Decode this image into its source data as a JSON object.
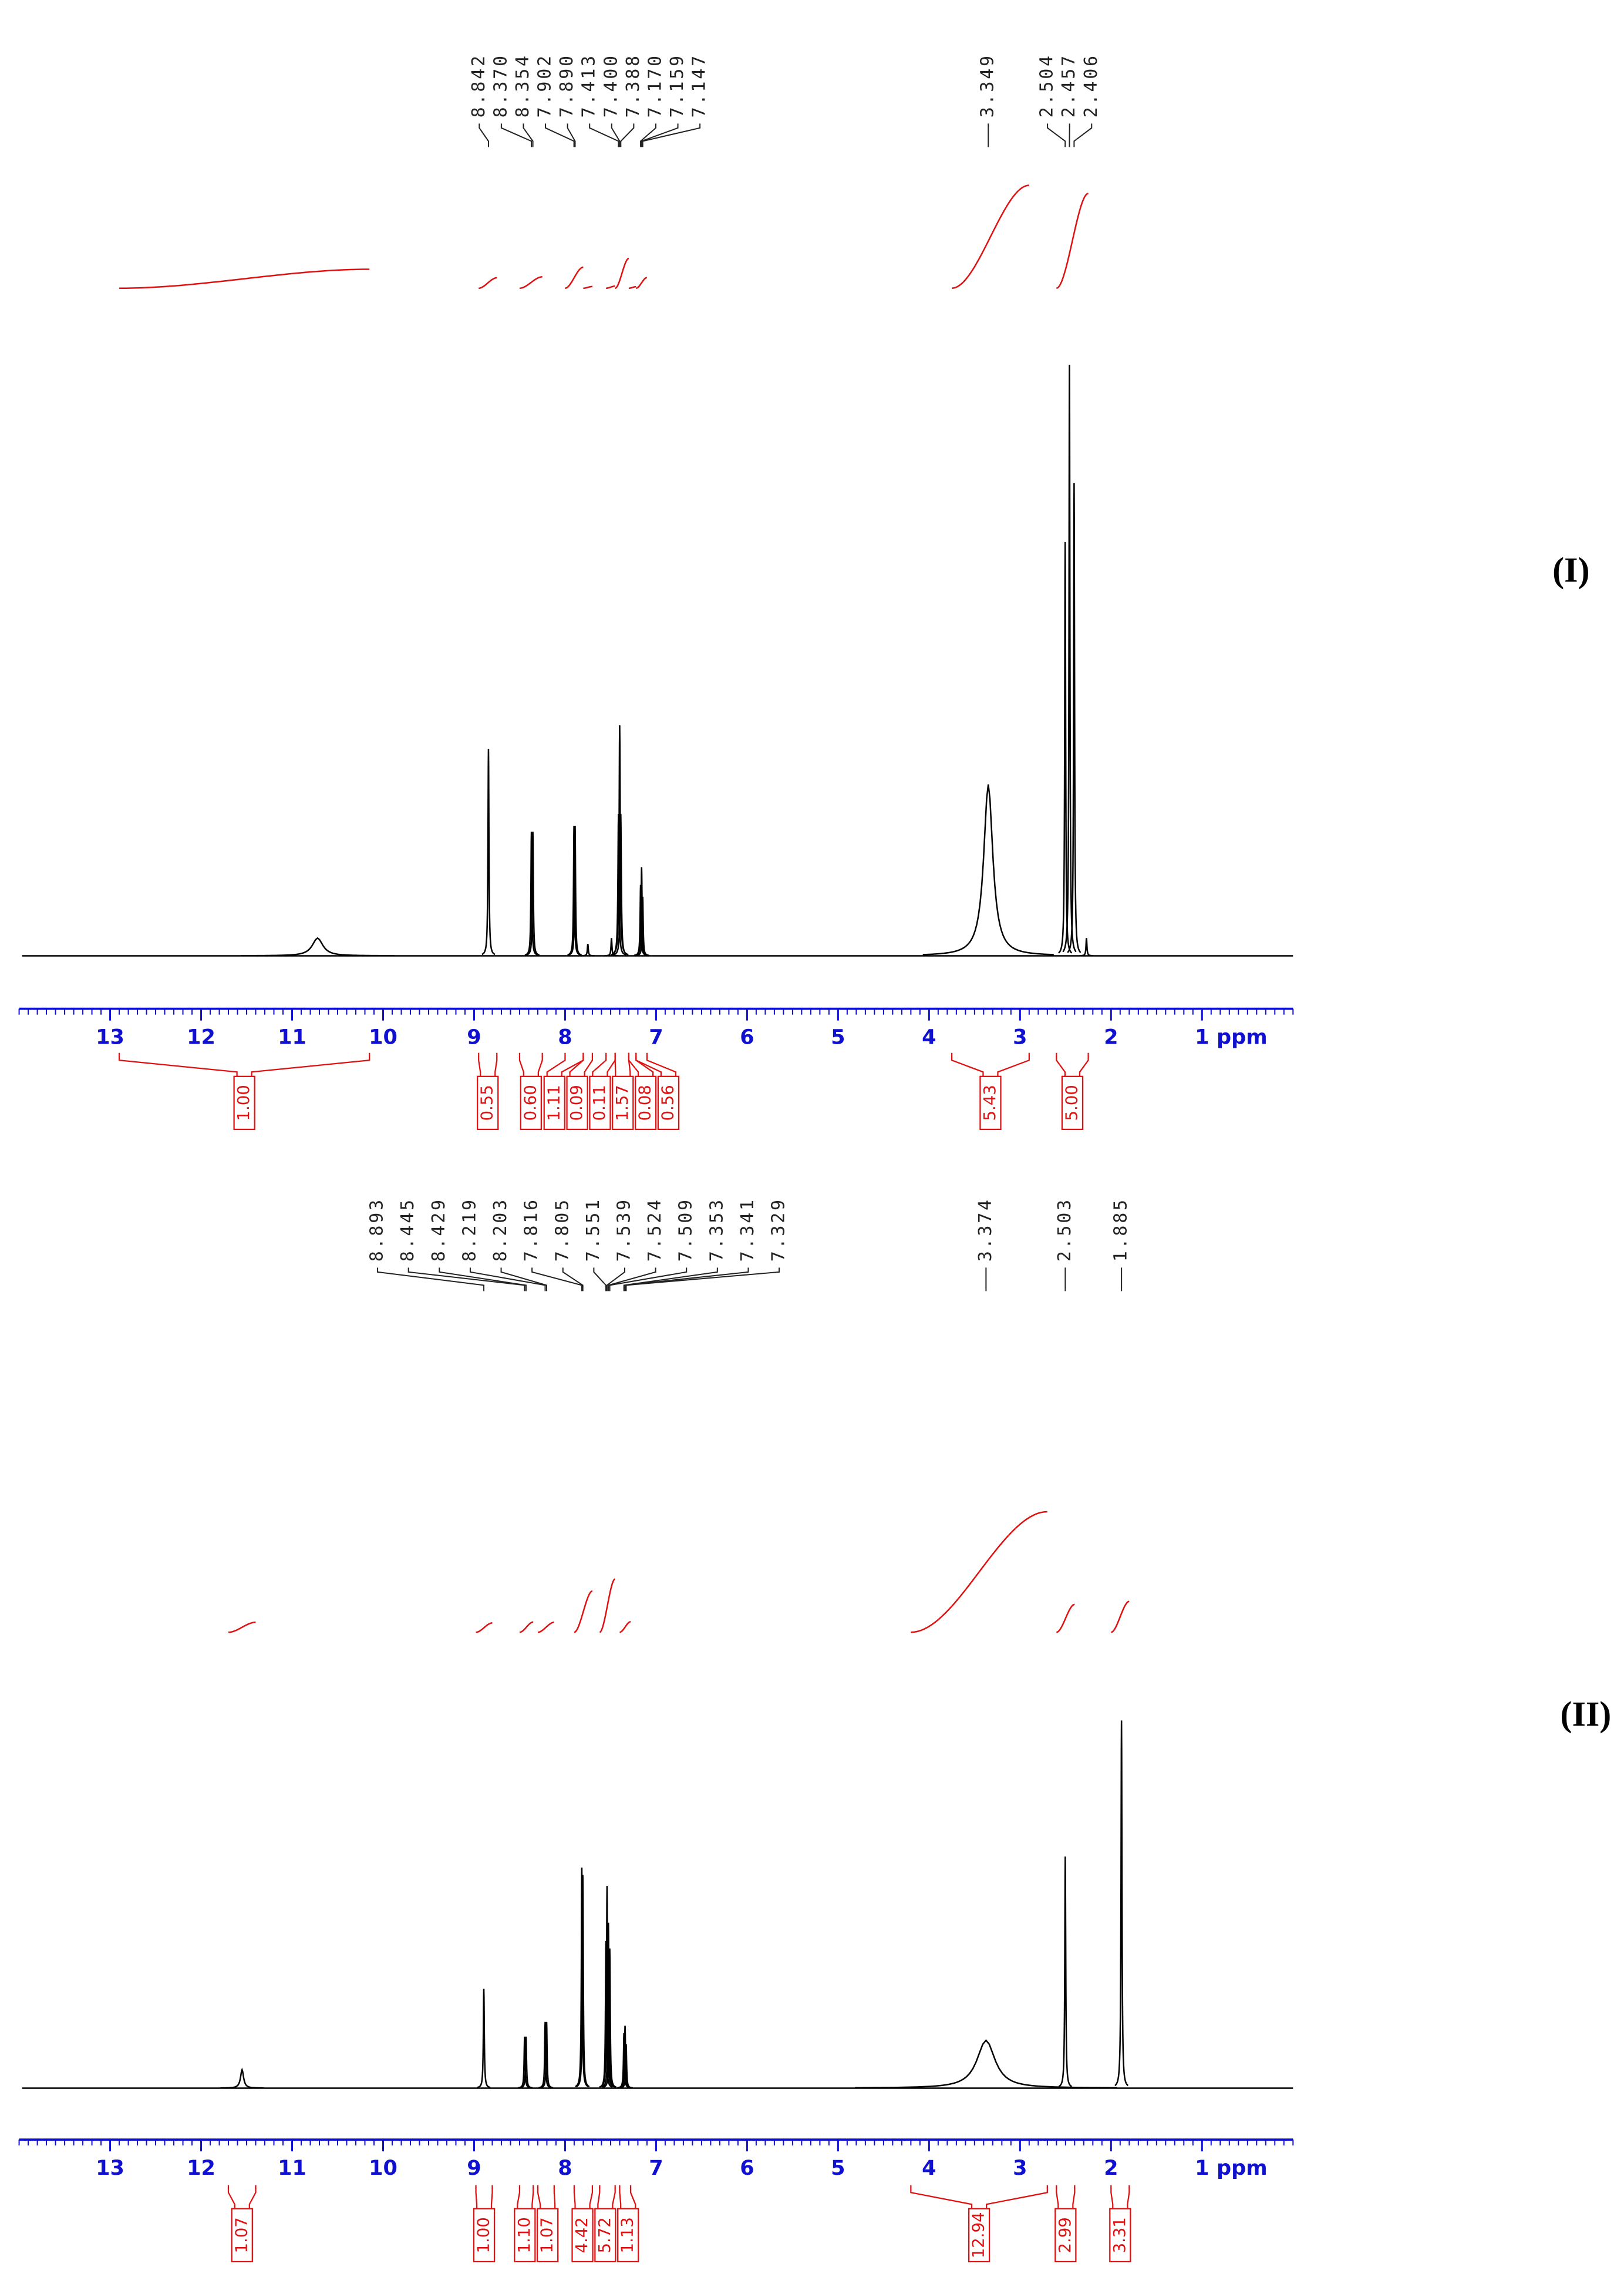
{
  "chart_data": [
    {
      "type": "spectrum",
      "panel_label": "(I)",
      "x_label": "ppm",
      "xlim": [
        14,
        0
      ],
      "xticks": [
        13,
        12,
        11,
        10,
        9,
        8,
        7,
        6,
        5,
        4,
        3,
        2,
        1
      ],
      "minor_tick_interval": 0.1,
      "ylim": [
        0,
        100
      ],
      "spectrum_color": "#000000",
      "integral_color": "#e01010",
      "axis_color": "#1010d0",
      "shift_labels": [
        8.842,
        {
          "value": 8.37,
          "label": "8.370"
        },
        8.354,
        7.902,
        {
          "value": 7.89,
          "label": "7.890"
        },
        7.413,
        {
          "value": 7.4,
          "label": "7.400"
        },
        7.388,
        {
          "value": 7.17,
          "label": "7.170"
        },
        7.159,
        7.147,
        3.349,
        2.504,
        2.457,
        2.406
      ],
      "integrals": [
        {
          "range": [
            12.9,
            10.15
          ],
          "value": 1,
          "label": "1.00"
        },
        {
          "range": [
            8.95,
            8.75
          ],
          "value": 0.55
        },
        {
          "range": [
            8.5,
            8.25
          ],
          "value": 0.6,
          "label": "0.60"
        },
        {
          "range": [
            8.0,
            7.8
          ],
          "value": 1.11
        },
        {
          "range": [
            7.8,
            7.7
          ],
          "value": 0.09
        },
        {
          "range": [
            7.55,
            7.45
          ],
          "value": 0.11
        },
        {
          "range": [
            7.45,
            7.3
          ],
          "value": 1.57
        },
        {
          "range": [
            7.3,
            7.22
          ],
          "value": 0.08
        },
        {
          "range": [
            7.22,
            7.1
          ],
          "value": 0.56
        },
        {
          "range": [
            3.75,
            2.9
          ],
          "value": 5.43
        },
        {
          "range": [
            2.6,
            2.25
          ],
          "value": 5,
          "label": "5.00"
        }
      ],
      "peaks": [
        {
          "ppm": 10.72,
          "height": 3,
          "width": 0.07
        },
        {
          "ppm": 8.842,
          "height": 35,
          "width": 0.006
        },
        {
          "ppm": 8.37,
          "height": 21,
          "width": 0.006
        },
        {
          "ppm": 8.354,
          "height": 21,
          "width": 0.006
        },
        {
          "ppm": 7.902,
          "height": 22,
          "width": 0.006
        },
        {
          "ppm": 7.89,
          "height": 22,
          "width": 0.006
        },
        {
          "ppm": 7.75,
          "height": 2,
          "width": 0.006
        },
        {
          "ppm": 7.49,
          "height": 3,
          "width": 0.006
        },
        {
          "ppm": 7.413,
          "height": 24,
          "width": 0.007
        },
        {
          "ppm": 7.4,
          "height": 39,
          "width": 0.007
        },
        {
          "ppm": 7.388,
          "height": 24,
          "width": 0.007
        },
        {
          "ppm": 7.17,
          "height": 12,
          "width": 0.006
        },
        {
          "ppm": 7.159,
          "height": 15,
          "width": 0.006
        },
        {
          "ppm": 7.147,
          "height": 10,
          "width": 0.006
        },
        {
          "ppm": 3.349,
          "height": 29,
          "width": 0.06
        },
        {
          "ppm": 2.504,
          "height": 70,
          "width": 0.006
        },
        {
          "ppm": 2.457,
          "height": 100,
          "width": 0.006
        },
        {
          "ppm": 2.406,
          "height": 80,
          "width": 0.006
        },
        {
          "ppm": 2.27,
          "height": 3,
          "width": 0.006
        }
      ]
    },
    {
      "type": "spectrum",
      "panel_label": "(II)",
      "x_label": "ppm",
      "xlim": [
        14,
        0
      ],
      "xticks": [
        13,
        12,
        11,
        10,
        9,
        8,
        7,
        6,
        5,
        4,
        3,
        2,
        1
      ],
      "minor_tick_interval": 0.1,
      "ylim": [
        0,
        100
      ],
      "spectrum_color": "#000000",
      "integral_color": "#e01010",
      "axis_color": "#1010d0",
      "shift_labels": [
        8.893,
        8.445,
        8.429,
        8.219,
        8.203,
        7.816,
        7.805,
        7.551,
        7.539,
        7.524,
        7.509,
        7.353,
        7.341,
        7.329,
        3.374,
        2.503,
        1.885
      ],
      "integrals": [
        {
          "range": [
            11.7,
            11.4
          ],
          "value": 1.07
        },
        {
          "range": [
            8.98,
            8.8
          ],
          "value": 1,
          "label": "1.00"
        },
        {
          "range": [
            8.5,
            8.35
          ],
          "value": 1.1,
          "label": "1.10"
        },
        {
          "range": [
            8.3,
            8.12
          ],
          "value": 1.07
        },
        {
          "range": [
            7.9,
            7.7
          ],
          "value": 4.42
        },
        {
          "range": [
            7.62,
            7.45
          ],
          "value": 5.72
        },
        {
          "range": [
            7.4,
            7.28
          ],
          "value": 1.13
        },
        {
          "range": [
            4.2,
            2.7
          ],
          "value": 12.94
        },
        {
          "range": [
            2.6,
            2.4
          ],
          "value": 2.99
        },
        {
          "range": [
            2.0,
            1.8
          ],
          "value": 3.31
        }
      ],
      "peaks": [
        {
          "ppm": 11.55,
          "height": 5,
          "width": 0.02
        },
        {
          "ppm": 8.893,
          "height": 27,
          "width": 0.006
        },
        {
          "ppm": 8.445,
          "height": 14,
          "width": 0.006
        },
        {
          "ppm": 8.429,
          "height": 14,
          "width": 0.006
        },
        {
          "ppm": 8.219,
          "height": 18,
          "width": 0.006
        },
        {
          "ppm": 8.203,
          "height": 18,
          "width": 0.006
        },
        {
          "ppm": 7.816,
          "height": 60,
          "width": 0.006
        },
        {
          "ppm": 7.805,
          "height": 58,
          "width": 0.006
        },
        {
          "ppm": 7.551,
          "height": 40,
          "width": 0.006
        },
        {
          "ppm": 7.539,
          "height": 55,
          "width": 0.006
        },
        {
          "ppm": 7.524,
          "height": 45,
          "width": 0.006
        },
        {
          "ppm": 7.509,
          "height": 38,
          "width": 0.006
        },
        {
          "ppm": 7.353,
          "height": 15,
          "width": 0.006
        },
        {
          "ppm": 7.341,
          "height": 17,
          "width": 0.006
        },
        {
          "ppm": 7.329,
          "height": 12,
          "width": 0.006
        },
        {
          "ppm": 3.374,
          "height": 13,
          "width": 0.12
        },
        {
          "ppm": 2.503,
          "height": 63,
          "width": 0.006
        },
        {
          "ppm": 1.885,
          "height": 100,
          "width": 0.006
        }
      ]
    }
  ]
}
